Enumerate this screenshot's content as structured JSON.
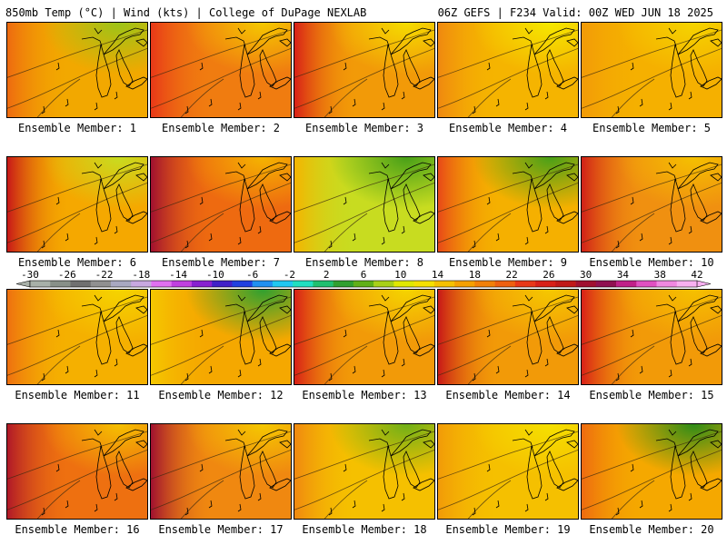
{
  "header": {
    "left": "850mb Temp (°C) | Wind (kts) | College of DuPage NEXLAB",
    "right": "06Z GEFS | F234 Valid: 00Z WED JUN 18 2025"
  },
  "members": [
    {
      "label": "Ensemble Member: 1",
      "base": "#f2a800",
      "west": "#ee6a10",
      "north": "#9cc418"
    },
    {
      "label": "Ensemble Member: 2",
      "base": "#f07c10",
      "west": "#e83818",
      "north": "#f5c800"
    },
    {
      "label": "Ensemble Member: 3",
      "base": "#f29a08",
      "west": "#d82018",
      "north": "#f5dc00"
    },
    {
      "label": "Ensemble Member: 4",
      "base": "#f5b400",
      "west": "#f08810",
      "north": "#f5e800"
    },
    {
      "label": "Ensemble Member: 5",
      "base": "#f5b000",
      "west": "#f29a08",
      "north": "#f5d400"
    },
    {
      "label": "Ensemble Member: 6",
      "base": "#f5a800",
      "west": "#c81818",
      "north": "#c8dc20"
    },
    {
      "label": "Ensemble Member: 7",
      "base": "#ee6a10",
      "west": "#a01030",
      "north": "#f5b400"
    },
    {
      "label": "Ensemble Member: 8",
      "base": "#c8dc20",
      "west": "#f5b400",
      "north": "#48a018"
    },
    {
      "label": "Ensemble Member: 9",
      "base": "#f5b000",
      "west": "#e84818",
      "north": "#48a018"
    },
    {
      "label": "Ensemble Member: 10",
      "base": "#f09010",
      "west": "#d02018",
      "north": "#f5c000"
    },
    {
      "label": "Ensemble Member: 11",
      "base": "#f5b000",
      "west": "#ee7010",
      "north": "#f5d400"
    },
    {
      "label": "Ensemble Member: 12",
      "base": "#f5a800",
      "west": "#f5c800",
      "north": "#30a030"
    },
    {
      "label": "Ensemble Member: 13",
      "base": "#f29a08",
      "west": "#d82018",
      "north": "#f5d400"
    },
    {
      "label": "Ensemble Member: 14",
      "base": "#f29a08",
      "west": "#c81818",
      "north": "#f5c800"
    },
    {
      "label": "Ensemble Member: 15",
      "base": "#f29a08",
      "west": "#d82018",
      "north": "#f5c000"
    },
    {
      "label": "Ensemble Member: 16",
      "base": "#ee7010",
      "west": "#b01828",
      "north": "#f5c000"
    },
    {
      "label": "Ensemble Member: 17",
      "base": "#f08810",
      "west": "#a01030",
      "north": "#f5c800"
    },
    {
      "label": "Ensemble Member: 18",
      "base": "#f5c000",
      "west": "#f08810",
      "north": "#70b018"
    },
    {
      "label": "Ensemble Member: 19",
      "base": "#f5c000",
      "west": "#f29a08",
      "north": "#f5e000"
    },
    {
      "label": "Ensemble Member: 20",
      "base": "#f5a800",
      "west": "#ee6a10",
      "north": "#2e8c18"
    }
  ],
  "colorbar": {
    "ticks": [
      "-30",
      "-26",
      "-22",
      "-18",
      "-14",
      "-10",
      "-6",
      "-2",
      "2",
      "6",
      "10",
      "14",
      "18",
      "22",
      "26",
      "30",
      "34",
      "38",
      "42"
    ],
    "colors": [
      "#a8b0a8",
      "#889088",
      "#707070",
      "#909090",
      "#a8a8c0",
      "#c8a8e0",
      "#e070f0",
      "#c040e0",
      "#8820d0",
      "#4020c8",
      "#2040e0",
      "#2090f0",
      "#20c8f0",
      "#20e0c0",
      "#20c070",
      "#30a030",
      "#60b018",
      "#a8d018",
      "#e0e800",
      "#f5e000",
      "#f5c000",
      "#f5a000",
      "#f28008",
      "#ee6010",
      "#e83818",
      "#d82018",
      "#c01818",
      "#a01030",
      "#901050",
      "#c02088",
      "#e050c0",
      "#f088e0",
      "#f8b0f0"
    ]
  }
}
